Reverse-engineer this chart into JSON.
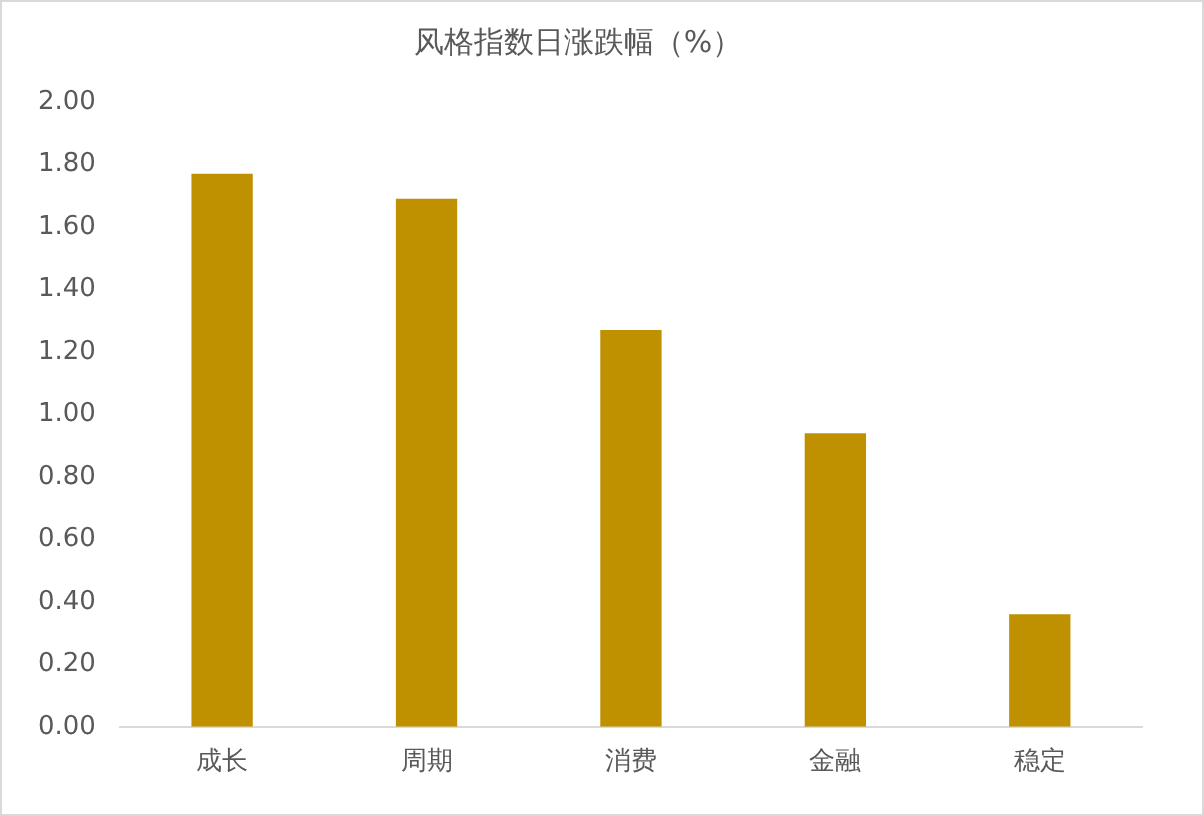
{
  "chart_data": {
    "type": "bar",
    "title": "风格指数日涨跌幅（%）",
    "categories": [
      "成长",
      "周期",
      "消费",
      "金融",
      "稳定"
    ],
    "values": [
      1.77,
      1.69,
      1.27,
      0.94,
      0.36
    ],
    "color": "#bf9000",
    "ylim": [
      0,
      2
    ],
    "yticks": [
      {
        "value": 0,
        "label": "0.00"
      },
      {
        "value": 0.2,
        "label": "0.20"
      },
      {
        "value": 0.4,
        "label": "0.40"
      },
      {
        "value": 0.6,
        "label": "0.60"
      },
      {
        "value": 0.8,
        "label": "0.80"
      },
      {
        "value": 1,
        "label": "1.00"
      },
      {
        "value": 1.2,
        "label": "1.20"
      },
      {
        "value": 1.4,
        "label": "1.40"
      },
      {
        "value": 1.6,
        "label": "1.60"
      },
      {
        "value": 1.8,
        "label": "1.80"
      },
      {
        "value": 2,
        "label": "2.00"
      }
    ],
    "grid": false,
    "legend": false
  }
}
